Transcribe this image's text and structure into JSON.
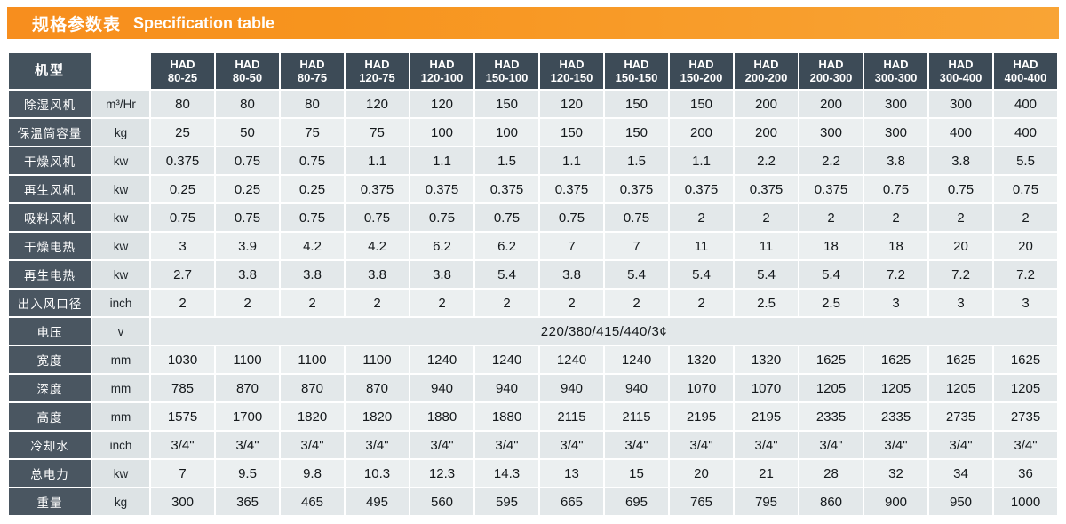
{
  "title": {
    "zh": "规格参数表",
    "en": "Specification table"
  },
  "colors": {
    "accent_orange": "#f7941e",
    "header_bg": "#3d4b57",
    "label_bg": "#4a5661",
    "unit_bg": "#dde3e5",
    "row_odd": "#e3e8ea",
    "row_even": "#ebeff0",
    "text_dark": "#14181b",
    "header_text": "#ffffff"
  },
  "table": {
    "corner": "机型",
    "model_prefix": "HAD",
    "models": [
      "80-25",
      "80-50",
      "80-75",
      "120-75",
      "120-100",
      "150-100",
      "120-150",
      "150-150",
      "150-200",
      "200-200",
      "200-300",
      "300-300",
      "300-400",
      "400-400"
    ],
    "rows": [
      {
        "label": "除湿风机",
        "unit": "m³/Hr",
        "values": [
          "80",
          "80",
          "80",
          "120",
          "120",
          "150",
          "120",
          "150",
          "150",
          "200",
          "200",
          "300",
          "300",
          "400"
        ]
      },
      {
        "label": "保温筒容量",
        "unit": "kg",
        "values": [
          "25",
          "50",
          "75",
          "75",
          "100",
          "100",
          "150",
          "150",
          "200",
          "200",
          "300",
          "300",
          "400",
          "400"
        ]
      },
      {
        "label": "干燥风机",
        "unit": "kw",
        "values": [
          "0.375",
          "0.75",
          "0.75",
          "1.1",
          "1.1",
          "1.5",
          "1.1",
          "1.5",
          "1.1",
          "2.2",
          "2.2",
          "3.8",
          "3.8",
          "5.5"
        ]
      },
      {
        "label": "再生风机",
        "unit": "kw",
        "values": [
          "0.25",
          "0.25",
          "0.25",
          "0.375",
          "0.375",
          "0.375",
          "0.375",
          "0.375",
          "0.375",
          "0.375",
          "0.375",
          "0.75",
          "0.75",
          "0.75"
        ]
      },
      {
        "label": "吸料风机",
        "unit": "kw",
        "values": [
          "0.75",
          "0.75",
          "0.75",
          "0.75",
          "0.75",
          "0.75",
          "0.75",
          "0.75",
          "2",
          "2",
          "2",
          "2",
          "2",
          "2"
        ]
      },
      {
        "label": "干燥电热",
        "unit": "kw",
        "values": [
          "3",
          "3.9",
          "4.2",
          "4.2",
          "6.2",
          "6.2",
          "7",
          "7",
          "11",
          "11",
          "18",
          "18",
          "20",
          "20"
        ]
      },
      {
        "label": "再生电热",
        "unit": "kw",
        "values": [
          "2.7",
          "3.8",
          "3.8",
          "3.8",
          "3.8",
          "5.4",
          "3.8",
          "5.4",
          "5.4",
          "5.4",
          "5.4",
          "7.2",
          "7.2",
          "7.2"
        ]
      },
      {
        "label": "出入风口径",
        "unit": "inch",
        "values": [
          "2",
          "2",
          "2",
          "2",
          "2",
          "2",
          "2",
          "2",
          "2",
          "2.5",
          "2.5",
          "3",
          "3",
          "3"
        ]
      },
      {
        "label": "电压",
        "unit": "v",
        "merged": "220/380/415/440/3¢"
      },
      {
        "label": "宽度",
        "unit": "mm",
        "values": [
          "1030",
          "1100",
          "1100",
          "1100",
          "1240",
          "1240",
          "1240",
          "1240",
          "1320",
          "1320",
          "1625",
          "1625",
          "1625",
          "1625"
        ]
      },
      {
        "label": "深度",
        "unit": "mm",
        "values": [
          "785",
          "870",
          "870",
          "870",
          "940",
          "940",
          "940",
          "940",
          "1070",
          "1070",
          "1205",
          "1205",
          "1205",
          "1205"
        ]
      },
      {
        "label": "高度",
        "unit": "mm",
        "values": [
          "1575",
          "1700",
          "1820",
          "1820",
          "1880",
          "1880",
          "2115",
          "2115",
          "2195",
          "2195",
          "2335",
          "2335",
          "2735",
          "2735"
        ]
      },
      {
        "label": "冷却水",
        "unit": "inch",
        "values": [
          "3/4\"",
          "3/4\"",
          "3/4\"",
          "3/4\"",
          "3/4\"",
          "3/4\"",
          "3/4\"",
          "3/4\"",
          "3/4\"",
          "3/4\"",
          "3/4\"",
          "3/4\"",
          "3/4\"",
          "3/4\""
        ]
      },
      {
        "label": "总电力",
        "unit": "kw",
        "values": [
          "7",
          "9.5",
          "9.8",
          "10.3",
          "12.3",
          "14.3",
          "13",
          "15",
          "20",
          "21",
          "28",
          "32",
          "34",
          "36"
        ]
      },
      {
        "label": "重量",
        "unit": "kg",
        "values": [
          "300",
          "365",
          "465",
          "495",
          "560",
          "595",
          "665",
          "695",
          "765",
          "795",
          "860",
          "900",
          "950",
          "1000"
        ]
      }
    ]
  }
}
